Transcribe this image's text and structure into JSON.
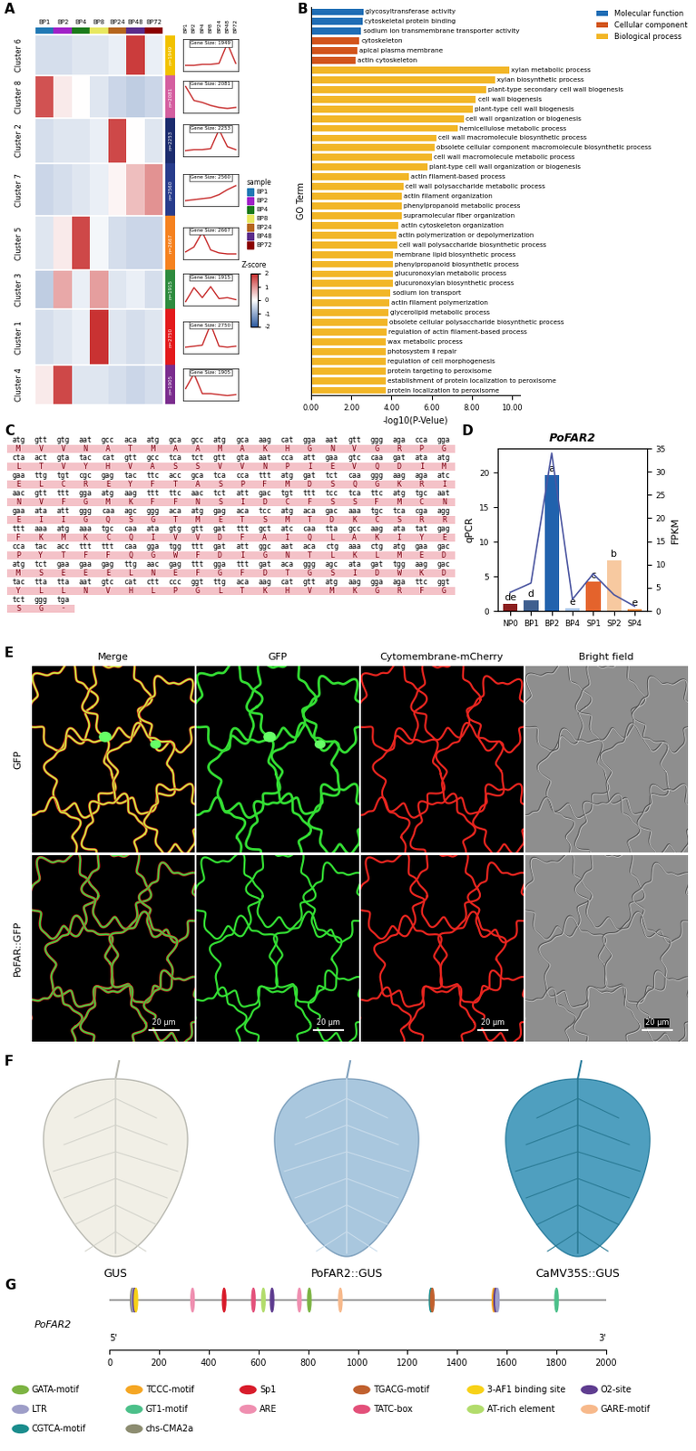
{
  "chart_data": [
    {
      "type": "heatmap",
      "panel": "A",
      "columns": [
        "BP1",
        "BP2",
        "BP4",
        "BP8",
        "BP24",
        "BP48",
        "BP72"
      ],
      "column_colors": [
        "#1f78b4",
        "#a020c8",
        "#1a7a1a",
        "#e8e860",
        "#b5651d",
        "#5a2a8a",
        "#8b0000"
      ],
      "legend_title": "sample",
      "clusters": [
        {
          "name": "Cluster 6",
          "size": 1949,
          "size_label": "n=1949",
          "gene_size_label": "Gene Size: 1949",
          "color": "#f2c200",
          "profile": [
            -0.4,
            -0.4,
            -0.3,
            -0.3,
            -0.2,
            1.8,
            -0.2
          ]
        },
        {
          "name": "Cluster 8",
          "size": 2081,
          "size_label": "n=2081",
          "gene_size_label": "Gene Size: 2081",
          "color": "#d45fa0",
          "profile": [
            1.6,
            0.2,
            0.0,
            -0.3,
            -0.5,
            -0.6,
            -0.5
          ]
        },
        {
          "name": "Cluster 2",
          "size": 2253,
          "size_label": "n=2253",
          "gene_size_label": "Gene Size: 2253",
          "color": "#1c2c6e",
          "profile": [
            -0.4,
            -0.3,
            -0.3,
            -0.2,
            1.7,
            0.0,
            -0.3
          ]
        },
        {
          "name": "Cluster 7",
          "size": 2560,
          "size_label": "n=2560",
          "gene_size_label": "Gene Size: 2560",
          "color": "#283c8c",
          "profile": [
            -0.5,
            -0.4,
            -0.3,
            -0.2,
            0.1,
            0.6,
            1.0
          ]
        },
        {
          "name": "Cluster 5",
          "size": 2667,
          "size_label": "n=2667",
          "gene_size_label": "Gene Size: 2667",
          "color": "#f58220",
          "profile": [
            -0.3,
            0.2,
            1.7,
            -0.1,
            -0.4,
            -0.5,
            -0.5
          ]
        },
        {
          "name": "Cluster 3",
          "size": 1915,
          "size_label": "n=1915",
          "gene_size_label": "Gene Size: 1915",
          "color": "#2e8b3e",
          "profile": [
            -0.6,
            0.8,
            -0.2,
            0.9,
            -0.3,
            -0.2,
            -0.4
          ]
        },
        {
          "name": "Cluster 1",
          "size": 2750,
          "size_label": "n=2750",
          "gene_size_label": "Gene Size: 2750",
          "color": "#e31a1c",
          "profile": [
            -0.4,
            -0.3,
            -0.2,
            1.9,
            -0.3,
            -0.4,
            -0.3
          ]
        },
        {
          "name": "Cluster 4",
          "size": 1905,
          "size_label": "n=1905",
          "gene_size_label": "Gene Size: 1905",
          "color": "#7b2d8e",
          "profile": [
            0.2,
            1.7,
            -0.3,
            -0.3,
            -0.4,
            -0.5,
            -0.4
          ]
        }
      ],
      "colorbar_title": "Z-score",
      "colorbar_lim": [
        -2,
        2
      ],
      "colorbar_ticks": [
        2,
        1,
        0,
        -1,
        -2
      ],
      "profile_ylim": [
        -1,
        2.2
      ]
    },
    {
      "type": "bar",
      "panel": "B",
      "orientation": "horizontal",
      "tick_labels": "x",
      "categories": [
        "glycosyltransferase activity",
        "cytoskeletal protein binding",
        "sodium ion transmembrane transporter activity",
        "cytoskeleton",
        "apical plasma membrane",
        "actin cytoskeleton",
        "xylan metabolic process",
        "xylan biosynthetic process",
        "plant-type secondary cell wall biogenesis",
        "cell wall biogenesis",
        "plant-type cell wall biogenesis",
        "cell wall organization or biogenesis",
        "hemicellulose metabolic process",
        "cell wall macromolecule biosynthetic process",
        "obsolete cellular component macromolecule biosynthetic process",
        "cell wall macromolecule metabolic process",
        "plant-type cell wall organization or biogenesis",
        "actin filament-based process",
        "cell wall polysaccharide metabolic process",
        "actin filament organization",
        "phenylpropanoid metabolic process",
        "supramolecular fiber organization",
        "actin cytoskeleton organization",
        "actin polymerization or depolymerization",
        "cell wall polysaccharide biosynthetic process",
        "membrane lipid biosynthetic process",
        "phenylpropanoid biosynthetic process",
        "glucuronoxylan metabolic process",
        "glucuronoxylan biosynthetic process",
        "sodium ion transport",
        "actin filament polymerization",
        "glycerolipid metabolic process",
        "obsolete cellular polysaccharide biosynthetic process",
        "regulation of actin filament-based process",
        "wax metabolic process",
        "photosystem Ⅱ repair",
        "regulation of cell morphogenesis",
        "protein targeting to peroxisome",
        "establishment of protein localization to peroxisome",
        "protein localization to peroxisome"
      ],
      "series": [
        {
          "name": "Molecular function",
          "color": "#1f6db5",
          "values": [
            2.6,
            2.55,
            2.5,
            null,
            null,
            null,
            null,
            null,
            null,
            null,
            null,
            null,
            null,
            null,
            null,
            null,
            null,
            null,
            null,
            null,
            null,
            null,
            null,
            null,
            null,
            null,
            null,
            null,
            null,
            null,
            null,
            null,
            null,
            null,
            null,
            null,
            null,
            null,
            null,
            null
          ]
        },
        {
          "name": "Cellular component",
          "color": "#d2541c",
          "values": [
            null,
            null,
            null,
            2.4,
            2.3,
            2.2,
            null,
            null,
            null,
            null,
            null,
            null,
            null,
            null,
            null,
            null,
            null,
            null,
            null,
            null,
            null,
            null,
            null,
            null,
            null,
            null,
            null,
            null,
            null,
            null,
            null,
            null,
            null,
            null,
            null,
            null,
            null,
            null,
            null,
            null
          ]
        },
        {
          "name": "Biological process",
          "color": "#f2b627",
          "values": [
            null,
            null,
            null,
            null,
            null,
            null,
            9.85,
            9.15,
            8.7,
            8.2,
            8.05,
            7.6,
            7.3,
            6.25,
            6.15,
            6.0,
            5.8,
            4.85,
            4.6,
            4.5,
            4.5,
            4.5,
            4.35,
            4.25,
            4.3,
            4.05,
            4.05,
            4.05,
            4.05,
            3.95,
            3.9,
            3.85,
            3.8,
            3.75,
            3.7,
            3.7,
            3.7,
            3.7,
            3.7,
            3.7
          ]
        }
      ],
      "xlabel": "-log10(P-Velue)",
      "ylabel": "GO Term",
      "xlim": [
        0,
        10.4
      ],
      "xticks": [
        {
          "value": 0,
          "label": "0.00"
        },
        {
          "value": 2,
          "label": "2.00"
        },
        {
          "value": 4,
          "label": "4.00"
        },
        {
          "value": 6,
          "label": "6.00"
        },
        {
          "value": 8,
          "label": "8.00"
        },
        {
          "value": 10,
          "label": "10.00"
        }
      ],
      "legend": "upper right"
    },
    {
      "type": "bar",
      "panel": "D",
      "title": "PoFAR2",
      "categories": [
        "NP0",
        "BP1",
        "BP2",
        "BP4",
        "SP1",
        "SP2",
        "SP4"
      ],
      "values": [
        1.0,
        1.5,
        19.7,
        0.4,
        4.2,
        7.3,
        0.3
      ],
      "colors": [
        "#8b1e1e",
        "#3f5f8f",
        "#2162ad",
        "#a8c4e6",
        "#e4632c",
        "#f7c9a0",
        "#f08a3c"
      ],
      "letters": [
        "de",
        "d",
        "a",
        "e",
        "c",
        "b",
        "e"
      ],
      "ylabel": "qPCR",
      "ylim": [
        0,
        23.5
      ],
      "yticks": [
        0,
        5,
        10,
        15,
        20
      ],
      "series": [
        {
          "name": "FPKM",
          "type": "line",
          "axis": "y2",
          "color": "#4a55a0",
          "values": [
            4.0,
            6.0,
            34.0,
            2.5,
            8.0,
            3.5,
            1.0
          ]
        }
      ],
      "y2label": "FPKM",
      "y2lim": [
        0,
        35
      ],
      "y2ticks": [
        0,
        5,
        10,
        15,
        20,
        25,
        30,
        35
      ]
    }
  ],
  "sequence": {
    "panel": "C",
    "rows": [
      {
        "dna": "atg gtt gtg aat gcc aca atg gca gcc atg gca aag cat gga aat gtt ggg aga cca gga",
        "protein": "M V V N A T M A A M A K H G N V G R P G"
      },
      {
        "dna": "cta act gta tac cat gtt gcc tca tct gtt gta aat cca att gaa gtc caa gat ata atg",
        "protein": "L T V Y H V A S S V V N P I E V Q D I M"
      },
      {
        "dna": "gaa ttg tgt cgc gag tac ttc acc gca tca cca ttt atg gat tct caa ggg aag aga atc",
        "protein": "E L C R E Y F T A S P F M D S Q G K R I"
      },
      {
        "dna": "aac gtt ttt gga atg aag ttt ttc aac tct att gac tgt ttt tcc tca ttc atg tgc aat",
        "protein": "N V F G M K F F N S I D C F S S F M C N"
      },
      {
        "dna": "gaa ata att ggg caa agc ggg aca atg gag aca tcc atg aca gac aaa tgc tca cga agg",
        "protein": "E I I G Q S G T M E T S M T D K C S R R"
      },
      {
        "dna": "ttt aaa atg aaa tgc caa ata gtg gtt gat ttt gct atc caa tta gcc aag ata tat gag",
        "protein": "F K M K C Q I V V D F A I Q L A K I Y E"
      },
      {
        "dna": "cca tac acc ttt ttt caa gga tgg ttt gat att ggc aat aca ctg aaa ctg atg gaa gac",
        "protein": "P Y T F F Q G W F D I G N T L K L M E D"
      },
      {
        "dna": "atg tct gaa gaa gag ttg aac gag ttt gga ttt gat aca ggg agc ata gat tgg aag gac",
        "protein": "M S E E E L N E F G F D T G S I D W K D"
      },
      {
        "dna": "tac tta tta aat gtc cat ctt ccc ggt ttg aca aag cat gtt atg aag gga aga ttc ggt",
        "protein": "Y L L N V H L P G L T K H V M K G R F G"
      },
      {
        "dna": "tct ggg tga",
        "protein": "S G -"
      }
    ]
  },
  "localization": {
    "panel": "E",
    "columns": [
      "Merge",
      "GFP",
      "Cytomembrane-mCherry",
      "Bright field"
    ],
    "rows": [
      "GFP",
      "PoFAR::GFP"
    ],
    "scale_bar": "20 μm"
  },
  "gus": {
    "panel": "F",
    "labels": [
      "GUS",
      "PoFAR2::GUS",
      "CaMV35S::GUS"
    ]
  },
  "promoter": {
    "panel": "G",
    "gene": "PoFAR2",
    "ends": [
      "5'",
      "3'"
    ],
    "xlim": [
      0,
      2000
    ],
    "xticks": [
      0,
      200,
      400,
      600,
      800,
      1000,
      1200,
      1400,
      1600,
      1800,
      2000
    ],
    "elements": [
      {
        "name": "GATA-motif",
        "color": "#7cb342"
      },
      {
        "name": "TCCC-motif",
        "color": "#f5a623"
      },
      {
        "name": "Sp1",
        "color": "#d81b2a"
      },
      {
        "name": "TGACG-motif",
        "color": "#c0602e"
      },
      {
        "name": "3-AF1 binding site",
        "color": "#f7d117"
      },
      {
        "name": "O2-site",
        "color": "#5e3c8f"
      },
      {
        "name": "LTR",
        "color": "#9e9ec8"
      },
      {
        "name": "GT1-motif",
        "color": "#4cc08a"
      },
      {
        "name": "ARE",
        "color": "#ef8fb0"
      },
      {
        "name": "TATC-box",
        "color": "#e3507a"
      },
      {
        "name": "AT-rich element",
        "color": "#b2dc6c"
      },
      {
        "name": "GARE-motif",
        "color": "#f7b98b"
      },
      {
        "name": "CGTCA-motif",
        "color": "#198c8c"
      },
      {
        "name": "chs-CMA2a",
        "color": "#8c8c70"
      }
    ],
    "sites": [
      {
        "element": "chs-CMA2a",
        "position": 92
      },
      {
        "element": "LTR",
        "position": 97
      },
      {
        "element": "O2-site",
        "position": 102
      },
      {
        "element": "3-AF1 binding site",
        "position": 107
      },
      {
        "element": "ARE",
        "position": 335
      },
      {
        "element": "Sp1",
        "position": 462
      },
      {
        "element": "TATC-box",
        "position": 580
      },
      {
        "element": "AT-rich element",
        "position": 620
      },
      {
        "element": "O2-site",
        "position": 655
      },
      {
        "element": "ARE",
        "position": 765
      },
      {
        "element": "GATA-motif",
        "position": 805
      },
      {
        "element": "GARE-motif",
        "position": 930
      },
      {
        "element": "CGTCA-motif",
        "position": 1295
      },
      {
        "element": "TGACG-motif",
        "position": 1300
      },
      {
        "element": "TCCC-motif",
        "position": 1548
      },
      {
        "element": "O2-site",
        "position": 1555
      },
      {
        "element": "LTR",
        "position": 1562
      },
      {
        "element": "GT1-motif",
        "position": 1800
      }
    ]
  }
}
